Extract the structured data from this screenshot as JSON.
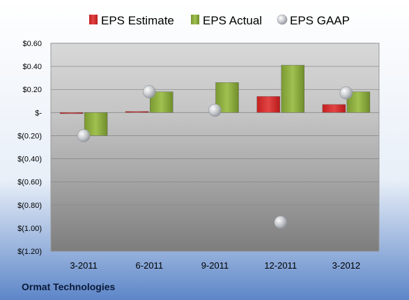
{
  "company": "Ormat Technologies",
  "chart_data": {
    "type": "bar",
    "categories": [
      "3-2011",
      "6-2011",
      "9-2011",
      "12-2011",
      "3-2012"
    ],
    "series": [
      {
        "name": "EPS Estimate",
        "kind": "bar",
        "color": "#d12b2b",
        "values": [
          -0.01,
          0.01,
          0.0,
          0.14,
          0.07
        ]
      },
      {
        "name": "EPS Actual",
        "kind": "bar",
        "color": "#8cad3f",
        "values": [
          -0.2,
          0.18,
          0.26,
          0.41,
          0.18
        ]
      },
      {
        "name": "EPS GAAP",
        "kind": "marker",
        "color": "#b8bcc2",
        "values": [
          -0.2,
          0.18,
          0.02,
          -0.95,
          0.17
        ]
      }
    ],
    "ylim": [
      -1.2,
      0.6
    ],
    "yticks": [
      0.6,
      0.4,
      0.2,
      0,
      -0.2,
      -0.4,
      -0.6,
      -0.8,
      -1.0,
      -1.2
    ],
    "ytick_labels": [
      "$0.60",
      "$0.40",
      "$0.20",
      "$-",
      "$(0.20)",
      "$(0.40)",
      "$(0.60)",
      "$(0.80)",
      "$(1.00)",
      "$(1.20)"
    ],
    "grid": true,
    "legend_position": "top"
  }
}
